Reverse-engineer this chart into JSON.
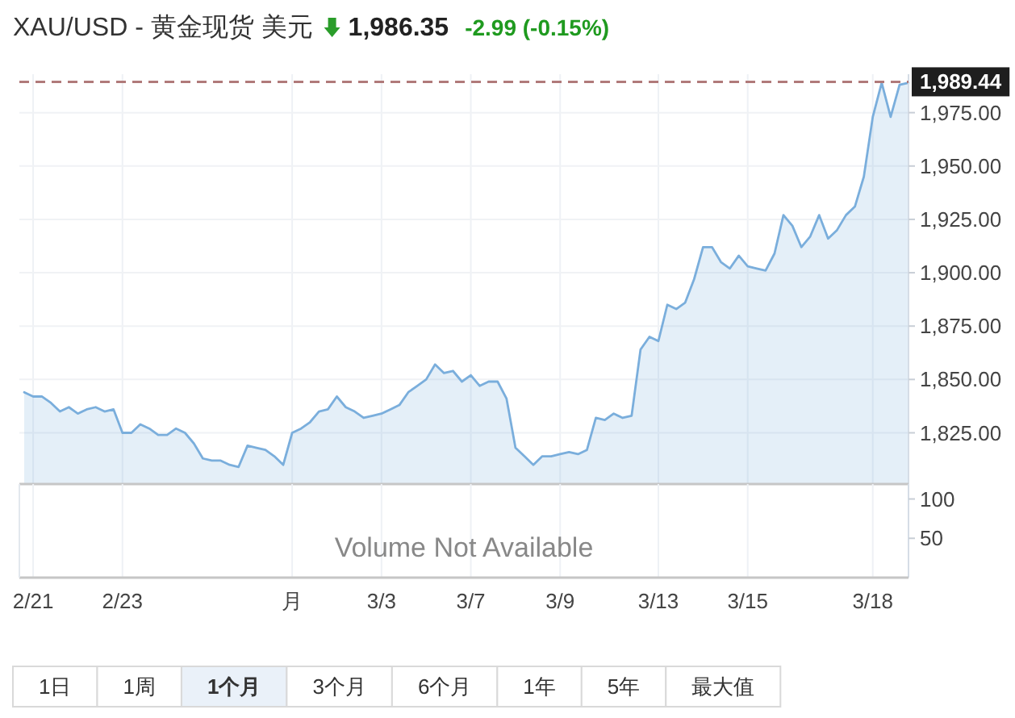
{
  "chart_data": [
    {
      "type": "area",
      "title": "XAU/USD - 黄金现货 美元",
      "subtitle": "1,986.35",
      "annotations": [
        "-2.99 (-0.15%)"
      ],
      "categories": [
        null,
        null,
        null,
        null,
        null,
        null,
        null,
        null,
        null,
        null,
        null,
        null,
        null,
        null,
        null,
        null,
        null,
        null,
        null,
        null,
        null,
        null,
        null,
        null,
        null,
        null,
        null,
        null,
        null,
        null,
        null,
        null,
        null,
        null,
        null,
        null,
        null,
        null,
        null,
        null,
        null,
        null,
        null,
        null,
        null,
        null,
        null,
        null,
        null,
        null,
        null,
        null,
        null,
        null,
        null,
        null,
        null,
        null,
        null,
        null,
        null,
        null,
        null,
        null,
        null,
        null,
        null,
        null,
        null,
        null,
        null,
        null,
        null,
        null,
        null,
        null,
        null,
        null,
        null,
        null,
        null,
        null,
        null,
        null,
        null,
        null,
        null,
        null,
        null,
        null,
        null,
        null,
        null,
        null,
        null,
        null,
        null,
        null,
        null,
        null
      ],
      "series": [
        {
          "color": "#7aaedc",
          "values": [
            1844,
            1842,
            1842,
            1839,
            1835,
            1837,
            1834,
            1836,
            1837,
            1835,
            1836,
            1825,
            1825,
            1829,
            1827,
            1824,
            1824,
            1827,
            1825,
            1820,
            1813,
            1812,
            1812,
            1810,
            1809,
            1819,
            1818,
            1817,
            1814,
            1810,
            1825,
            1827,
            1830,
            1835,
            1836,
            1842,
            1837,
            1835,
            1832,
            1833,
            1834,
            1836,
            1838,
            1844,
            1847,
            1850,
            1857,
            1853,
            1854,
            1849,
            1852,
            1847,
            1849,
            1849,
            1841,
            1818,
            1814,
            1810,
            1814,
            1814,
            1815,
            1816,
            1815,
            1817,
            1832,
            1831,
            1834,
            1832,
            1833,
            1864,
            1870,
            1868,
            1885,
            1883,
            1886,
            1897,
            1912,
            1912,
            1905,
            1902,
            1908,
            1903,
            1902,
            1901,
            1909,
            1927,
            1922,
            1912,
            1917,
            1927,
            1916,
            1920,
            1927,
            1931,
            1945,
            1973,
            1989,
            1973,
            1988,
            1989
          ]
        }
      ],
      "ylim": [
        1801,
        1993
      ],
      "yticks": [
        {
          "value": 1825,
          "label": "1,825.00"
        },
        {
          "value": 1850,
          "label": "1,850.00"
        },
        {
          "value": 1875,
          "label": "1,875.00"
        },
        {
          "value": 1900,
          "label": "1,900.00"
        },
        {
          "value": 1925,
          "label": "1,925.00"
        },
        {
          "value": 1950,
          "label": "1,950.00"
        },
        {
          "value": 1975,
          "label": "1,975.00"
        }
      ],
      "ref_lines": [
        {
          "axis": "y",
          "value": 1989.44,
          "label": "1,989.44",
          "color": "#b07a7a",
          "line_style": "dashed"
        }
      ],
      "grid": true,
      "tick_labels": "y"
    },
    {
      "type": "bar",
      "annotations": [
        "Volume Not Available"
      ],
      "categories": [
        null,
        "2/21",
        null,
        null,
        null,
        null,
        null,
        null,
        null,
        null,
        null,
        "2/23",
        null,
        null,
        null,
        null,
        null,
        null,
        null,
        null,
        null,
        null,
        null,
        null,
        null,
        null,
        null,
        null,
        null,
        null,
        "月",
        null,
        null,
        null,
        null,
        null,
        null,
        null,
        null,
        null,
        "3/3",
        null,
        null,
        null,
        null,
        null,
        null,
        null,
        null,
        null,
        "3/7",
        null,
        null,
        null,
        null,
        null,
        null,
        null,
        null,
        null,
        "3/9",
        null,
        null,
        null,
        null,
        null,
        null,
        null,
        null,
        null,
        null,
        "3/13",
        null,
        null,
        null,
        null,
        null,
        null,
        null,
        null,
        null,
        "3/15",
        null,
        null,
        null,
        null,
        null,
        null,
        null,
        null,
        null,
        null,
        null,
        null,
        null,
        "3/18",
        null,
        null,
        null,
        null
      ],
      "ylim": [
        0,
        119
      ],
      "yticks": [
        100,
        50
      ],
      "grid": "x"
    },
    {
      "type": "other",
      "categories": [
        "1日",
        "1周",
        "1个月",
        "3个月",
        "6个月",
        "1年",
        "5年",
        "最大值"
      ],
      "colors": [
        "#ffffff",
        "#ffffff",
        "#eaf1f9",
        "#ffffff",
        "#ffffff",
        "#ffffff",
        "#ffffff",
        "#ffffff"
      ]
    }
  ]
}
